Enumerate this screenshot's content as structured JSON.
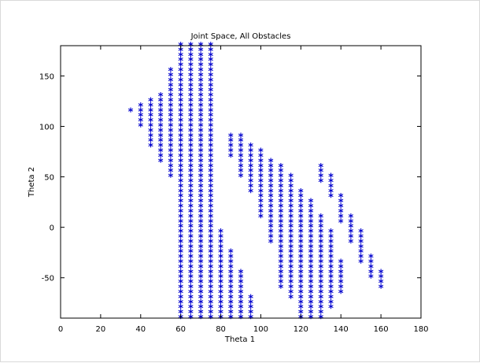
{
  "chart_data": {
    "type": "scatter",
    "title": "Joint Space, All Obstacles",
    "xlabel": "Theta 1",
    "ylabel": "Theta 2",
    "xlim": [
      0,
      180
    ],
    "ylim": [
      -90,
      180
    ],
    "xticks": [
      "0",
      "20",
      "40",
      "60",
      "80",
      "100",
      "120",
      "140",
      "160",
      "180"
    ],
    "yticks": [
      "-50",
      "0",
      "50",
      "100",
      "150"
    ],
    "marker": "*",
    "marker_color": "#0000cc",
    "grid": false,
    "step": 5,
    "columns": [
      {
        "x": 35,
        "ranges": [
          [
            115,
            115
          ]
        ]
      },
      {
        "x": 40,
        "ranges": [
          [
            100,
            120
          ]
        ]
      },
      {
        "x": 45,
        "ranges": [
          [
            80,
            125
          ]
        ]
      },
      {
        "x": 50,
        "ranges": [
          [
            65,
            130
          ]
        ]
      },
      {
        "x": 55,
        "ranges": [
          [
            50,
            155
          ]
        ]
      },
      {
        "x": 60,
        "ranges": [
          [
            -90,
            180
          ]
        ]
      },
      {
        "x": 65,
        "ranges": [
          [
            -90,
            180
          ]
        ]
      },
      {
        "x": 70,
        "ranges": [
          [
            -90,
            180
          ]
        ]
      },
      {
        "x": 75,
        "ranges": [
          [
            -90,
            180
          ]
        ]
      },
      {
        "x": 80,
        "ranges": [
          [
            -90,
            -5
          ]
        ]
      },
      {
        "x": 85,
        "ranges": [
          [
            70,
            90
          ],
          [
            -90,
            -25
          ]
        ]
      },
      {
        "x": 90,
        "ranges": [
          [
            50,
            90
          ],
          [
            -90,
            -45
          ]
        ]
      },
      {
        "x": 95,
        "ranges": [
          [
            35,
            80
          ],
          [
            -90,
            -70
          ]
        ]
      },
      {
        "x": 100,
        "ranges": [
          [
            10,
            75
          ]
        ]
      },
      {
        "x": 105,
        "ranges": [
          [
            -15,
            65
          ]
        ]
      },
      {
        "x": 110,
        "ranges": [
          [
            -60,
            60
          ]
        ]
      },
      {
        "x": 115,
        "ranges": [
          [
            -70,
            50
          ]
        ]
      },
      {
        "x": 120,
        "ranges": [
          [
            -90,
            35
          ]
        ]
      },
      {
        "x": 125,
        "ranges": [
          [
            -90,
            25
          ]
        ]
      },
      {
        "x": 130,
        "ranges": [
          [
            45,
            60
          ],
          [
            -90,
            10
          ]
        ]
      },
      {
        "x": 135,
        "ranges": [
          [
            30,
            50
          ],
          [
            -80,
            -5
          ]
        ]
      },
      {
        "x": 140,
        "ranges": [
          [
            5,
            30
          ],
          [
            -65,
            -35
          ]
        ]
      },
      {
        "x": 145,
        "ranges": [
          [
            -15,
            10
          ]
        ]
      },
      {
        "x": 150,
        "ranges": [
          [
            -35,
            -5
          ]
        ]
      },
      {
        "x": 155,
        "ranges": [
          [
            -50,
            -30
          ]
        ]
      },
      {
        "x": 160,
        "ranges": [
          [
            -60,
            -45
          ]
        ]
      }
    ]
  }
}
